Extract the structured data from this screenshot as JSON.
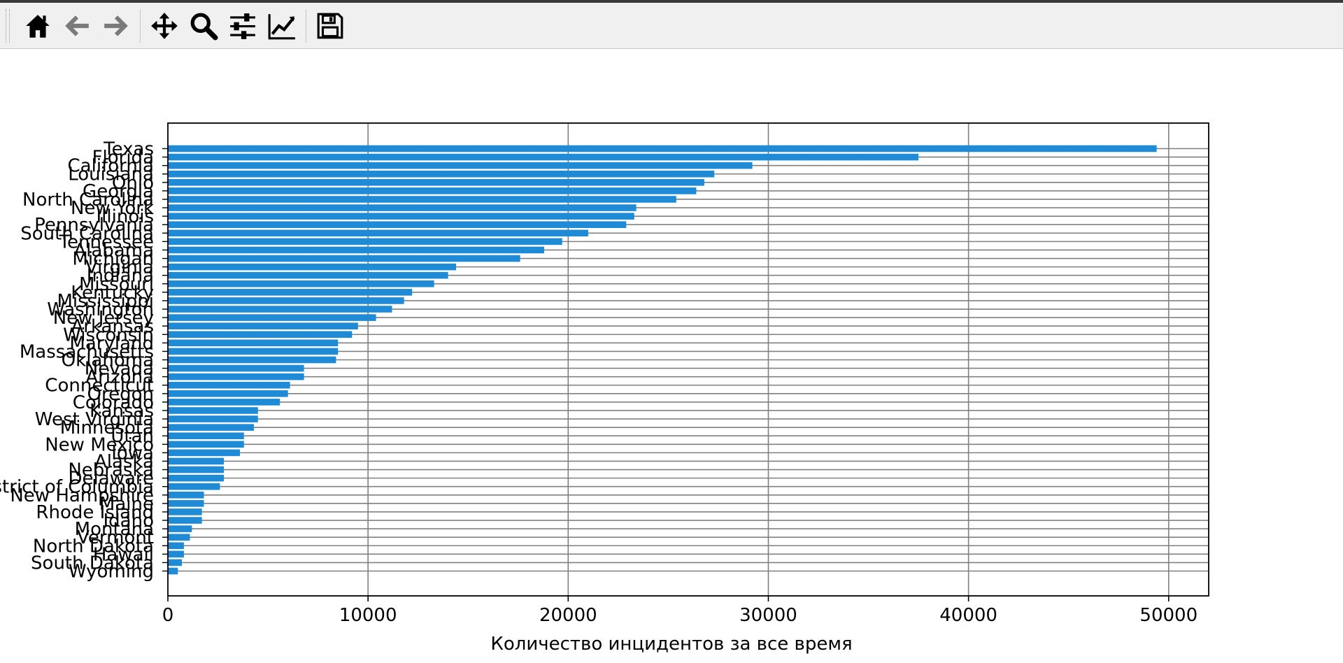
{
  "toolbar": {
    "buttons": [
      {
        "name": "home",
        "icon": "home-icon"
      },
      {
        "name": "back",
        "icon": "arrow-left-icon"
      },
      {
        "name": "forward",
        "icon": "arrow-right-icon"
      },
      {
        "name": "pan",
        "icon": "move-icon"
      },
      {
        "name": "zoom",
        "icon": "magnifier-icon"
      },
      {
        "name": "configure-subplots",
        "icon": "sliders-icon"
      },
      {
        "name": "edit-axis",
        "icon": "line-chart-icon"
      },
      {
        "name": "save",
        "icon": "floppy-disk-icon"
      }
    ]
  },
  "chart_data": {
    "type": "bar",
    "orientation": "horizontal",
    "xlabel": "Количество инцидентов за все время",
    "ylabel": "",
    "title": "",
    "xlim": [
      0,
      52000
    ],
    "xticks": [
      0,
      10000,
      20000,
      30000,
      40000,
      50000
    ],
    "bar_color": "#1f8ad6",
    "grid": "on",
    "categories": [
      "Texas",
      "Florida",
      "California",
      "Louisiana",
      "Ohio",
      "Georgia",
      "North Carolina",
      "New York",
      "Illinois",
      "Pennsylvania",
      "South Carolina",
      "Tennessee",
      "Alabama",
      "Michigan",
      "Virginia",
      "Indiana",
      "Missouri",
      "Kentucky",
      "Mississippi",
      "Washington",
      "New Jersey",
      "Arkansas",
      "Wisconsin",
      "Maryland",
      "Massachusetts",
      "Oklahoma",
      "Nevada",
      "Arizona",
      "Connecticut",
      "Oregon",
      "Colorado",
      "Kansas",
      "West Virginia",
      "Minnesota",
      "Utah",
      "New Mexico",
      "Iowa",
      "Alaska",
      "Nebraska",
      "Delaware",
      "District of Columbia",
      "New Hampshire",
      "Maine",
      "Rhode Island",
      "Idaho",
      "Montana",
      "Vermont",
      "North Dakota",
      "Hawaii",
      "South Dakota",
      "Wyoming"
    ],
    "values": [
      49400,
      37500,
      29200,
      27300,
      26800,
      26400,
      25400,
      23400,
      23300,
      22900,
      21000,
      19700,
      18800,
      17600,
      14400,
      14000,
      13300,
      12200,
      11800,
      11200,
      10400,
      9500,
      9200,
      8500,
      8500,
      8400,
      6800,
      6800,
      6100,
      6000,
      5600,
      4500,
      4500,
      4300,
      3800,
      3800,
      3600,
      2800,
      2800,
      2800,
      2600,
      1800,
      1800,
      1700,
      1700,
      1200,
      1100,
      800,
      800,
      700,
      500
    ]
  }
}
